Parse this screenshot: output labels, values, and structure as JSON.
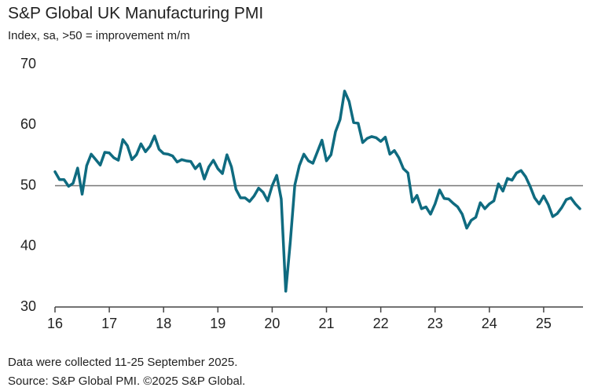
{
  "chart_data": {
    "type": "line",
    "title": "S&P Global UK Manufacturing PMI",
    "subtitle": "Index, sa, >50 = improvement m/m",
    "notes": [
      "Data were collected 11-25 September 2025.",
      "Source: S&P Global PMI. ©2025 S&P Global."
    ],
    "categories": [
      "16",
      null,
      null,
      null,
      null,
      null,
      null,
      null,
      null,
      null,
      null,
      null,
      "17",
      null,
      null,
      null,
      null,
      null,
      null,
      null,
      null,
      null,
      null,
      null,
      "18",
      null,
      null,
      null,
      null,
      null,
      null,
      null,
      null,
      null,
      null,
      null,
      "19",
      null,
      null,
      null,
      null,
      null,
      null,
      null,
      null,
      null,
      null,
      null,
      "20",
      null,
      null,
      null,
      null,
      null,
      null,
      null,
      null,
      null,
      null,
      null,
      "21",
      null,
      null,
      null,
      null,
      null,
      null,
      null,
      null,
      null,
      null,
      null,
      "22",
      null,
      null,
      null,
      null,
      null,
      null,
      null,
      null,
      null,
      null,
      null,
      "23",
      null,
      null,
      null,
      null,
      null,
      null,
      null,
      null,
      null,
      null,
      null,
      "24",
      null,
      null,
      null,
      null,
      null,
      null,
      null,
      null,
      null,
      null,
      null,
      "25",
      null,
      null,
      null,
      null,
      null,
      null,
      null,
      null
    ],
    "series": [
      {
        "color": "#0f6b80",
        "values": [
          52.3,
          51.0,
          51.0,
          49.9,
          50.4,
          52.9,
          48.6,
          53.3,
          55.2,
          54.3,
          53.4,
          55.5,
          55.4,
          54.6,
          54.2,
          57.6,
          56.6,
          54.3,
          55.1,
          56.9,
          55.6,
          56.5,
          58.2,
          56.0,
          55.3,
          55.2,
          54.9,
          53.9,
          54.3,
          54.1,
          54.0,
          52.8,
          53.6,
          51.1,
          53.1,
          54.2,
          52.8,
          52.0,
          55.1,
          53.1,
          49.4,
          48.0,
          48.0,
          47.4,
          48.3,
          49.6,
          48.9,
          47.5,
          50.0,
          51.7,
          47.8,
          32.6,
          40.7,
          50.1,
          53.3,
          55.2,
          54.1,
          53.7,
          55.6,
          57.5,
          54.1,
          55.1,
          58.9,
          60.9,
          65.6,
          63.9,
          60.4,
          60.3,
          57.1,
          57.8,
          58.1,
          57.9,
          57.3,
          58.0,
          55.2,
          55.8,
          54.6,
          52.8,
          52.1,
          47.3,
          48.4,
          46.2,
          46.5,
          45.3,
          47.0,
          49.3,
          47.9,
          47.8,
          47.1,
          46.5,
          45.3,
          43.0,
          44.3,
          44.8,
          47.2,
          46.2,
          47.0,
          47.5,
          50.3,
          49.1,
          51.2,
          50.9,
          52.1,
          52.5,
          51.5,
          49.9,
          48.0,
          47.0,
          48.3,
          46.9,
          44.9,
          45.4,
          46.4,
          47.7,
          48.0,
          47.0,
          46.2
        ]
      }
    ],
    "ylim": [
      30,
      70
    ],
    "yticks": [
      30,
      40,
      50,
      60,
      70
    ],
    "reference_line": 50
  }
}
